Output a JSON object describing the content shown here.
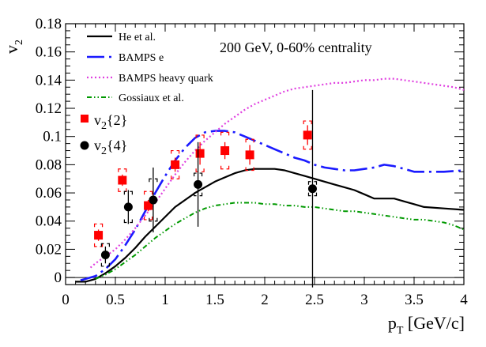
{
  "chart_data": {
    "type": "line",
    "annotation": "200 GeV, 0-60% centrality",
    "xlabel": {
      "main": "p",
      "sub": "T",
      "rest": " [GeV/c]"
    },
    "ylabel": {
      "main": "v",
      "sub": "2"
    },
    "xlim": [
      0,
      4
    ],
    "ylim": [
      -0.005,
      0.18
    ],
    "x_ticks": [
      0,
      0.5,
      1,
      1.5,
      2,
      2.5,
      3,
      3.5,
      4
    ],
    "x_tick_labels": [
      "0",
      "0.5",
      "1",
      "1.5",
      "2",
      "2.5",
      "3",
      "3.5",
      "4"
    ],
    "y_ticks": [
      0,
      0.02,
      0.04,
      0.06,
      0.08,
      0.1,
      0.12,
      0.14,
      0.16,
      0.18
    ],
    "y_tick_labels": [
      "0",
      "0.02",
      "0.04",
      "0.06",
      "0.08",
      "0.1",
      "0.12",
      "0.14",
      "0.16",
      "0.18"
    ],
    "curves": [
      {
        "name": "He et al.",
        "color": "#000000",
        "dash": "",
        "width": 2.2,
        "x": [
          0.1,
          0.2,
          0.3,
          0.4,
          0.5,
          0.6,
          0.7,
          0.8,
          0.9,
          1.0,
          1.1,
          1.2,
          1.3,
          1.4,
          1.5,
          1.6,
          1.7,
          1.8,
          1.9,
          2.0,
          2.1,
          2.2,
          2.3,
          2.4,
          2.5,
          2.6,
          2.7,
          2.8,
          2.9,
          3.0,
          3.1,
          3.2,
          3.3,
          3.4,
          3.5,
          3.6,
          3.8,
          4.0
        ],
        "y": [
          -0.003,
          -0.003,
          -0.001,
          0.003,
          0.008,
          0.014,
          0.021,
          0.029,
          0.036,
          0.043,
          0.05,
          0.055,
          0.06,
          0.064,
          0.068,
          0.071,
          0.074,
          0.076,
          0.077,
          0.077,
          0.077,
          0.076,
          0.074,
          0.072,
          0.07,
          0.068,
          0.066,
          0.064,
          0.062,
          0.059,
          0.056,
          0.056,
          0.056,
          0.054,
          0.052,
          0.05,
          0.049,
          0.048
        ]
      },
      {
        "name": "BAMPS e",
        "color": "#1a1aff",
        "dash": "22,6,3,6",
        "width": 2.6,
        "x": [
          0.15,
          0.2,
          0.3,
          0.4,
          0.5,
          0.6,
          0.7,
          0.8,
          0.9,
          1.0,
          1.1,
          1.2,
          1.3,
          1.4,
          1.5,
          1.6,
          1.7,
          1.8,
          1.9,
          2.0,
          2.1,
          2.2,
          2.3,
          2.4,
          2.5,
          2.6,
          2.7,
          2.8,
          2.9,
          3.0,
          3.1,
          3.2,
          3.3,
          3.4,
          3.5,
          3.6,
          3.8,
          4.0
        ],
        "y": [
          -0.002,
          -0.001,
          0.001,
          0.006,
          0.013,
          0.023,
          0.034,
          0.047,
          0.06,
          0.072,
          0.083,
          0.092,
          0.099,
          0.103,
          0.104,
          0.104,
          0.103,
          0.1,
          0.097,
          0.094,
          0.091,
          0.088,
          0.085,
          0.083,
          0.08,
          0.078,
          0.077,
          0.076,
          0.076,
          0.077,
          0.078,
          0.08,
          0.079,
          0.077,
          0.075,
          0.075,
          0.075,
          0.076
        ]
      },
      {
        "name": "BAMPS heavy quark",
        "color": "#e040e0",
        "dash": "2,3",
        "width": 2.2,
        "x": [
          0.25,
          0.3,
          0.4,
          0.5,
          0.6,
          0.7,
          0.8,
          0.9,
          1.0,
          1.1,
          1.2,
          1.3,
          1.4,
          1.5,
          1.6,
          1.7,
          1.8,
          1.9,
          2.0,
          2.1,
          2.2,
          2.3,
          2.4,
          2.5,
          2.6,
          2.7,
          2.8,
          2.9,
          3.0,
          3.1,
          3.2,
          3.3,
          3.4,
          3.5,
          3.6,
          3.7,
          3.8,
          3.9,
          4.0
        ],
        "y": [
          0.007,
          0.01,
          0.015,
          0.02,
          0.027,
          0.035,
          0.044,
          0.053,
          0.063,
          0.073,
          0.082,
          0.09,
          0.097,
          0.103,
          0.109,
          0.114,
          0.119,
          0.123,
          0.126,
          0.129,
          0.132,
          0.134,
          0.135,
          0.136,
          0.137,
          0.138,
          0.138,
          0.139,
          0.14,
          0.14,
          0.141,
          0.141,
          0.14,
          0.139,
          0.138,
          0.137,
          0.136,
          0.135,
          0.133
        ]
      },
      {
        "name": "Gossiaux et al.",
        "color": "#009900",
        "dash": "6,3,1.5,3,1.5,3",
        "width": 2.0,
        "x": [
          0.3,
          0.4,
          0.5,
          0.6,
          0.7,
          0.8,
          0.9,
          1.0,
          1.1,
          1.2,
          1.3,
          1.4,
          1.5,
          1.6,
          1.7,
          1.8,
          1.9,
          2.0,
          2.1,
          2.2,
          2.3,
          2.4,
          2.5,
          2.6,
          2.7,
          2.8,
          2.9,
          3.0,
          3.1,
          3.2,
          3.3,
          3.4,
          3.5,
          3.6,
          3.7,
          3.8,
          3.9,
          4.0
        ],
        "y": [
          -0.001,
          0.002,
          0.006,
          0.011,
          0.016,
          0.022,
          0.028,
          0.033,
          0.038,
          0.042,
          0.046,
          0.049,
          0.051,
          0.052,
          0.053,
          0.053,
          0.053,
          0.052,
          0.052,
          0.051,
          0.051,
          0.05,
          0.05,
          0.049,
          0.048,
          0.047,
          0.047,
          0.046,
          0.045,
          0.044,
          0.043,
          0.042,
          0.041,
          0.041,
          0.04,
          0.039,
          0.037,
          0.034
        ]
      }
    ],
    "markers": [
      {
        "name": "v2{2}",
        "label_main": "v",
        "label_sub": "2",
        "label_rest": "{2}",
        "shape": "square",
        "color": "#ff0000",
        "x": [
          0.33,
          0.57,
          0.83,
          1.1,
          1.35,
          1.6,
          1.85,
          2.43
        ],
        "y": [
          0.03,
          0.069,
          0.051,
          0.08,
          0.088,
          0.09,
          0.087,
          0.101
        ],
        "stat_err": [
          0.004,
          0.004,
          0.004,
          0.005,
          0.008,
          0.006,
          0.007,
          0.007
        ],
        "sys_err": [
          0.008,
          0.008,
          0.01,
          0.01,
          0.013,
          0.013,
          0.011,
          0.01
        ]
      },
      {
        "name": "v2{4}",
        "label_main": "v",
        "label_sub": "2",
        "label_rest": "{4}",
        "shape": "circle",
        "color": "#000000",
        "x": [
          0.4,
          0.63,
          0.88,
          1.33,
          2.48
        ],
        "y": [
          0.016,
          0.05,
          0.055,
          0.066,
          0.063
        ],
        "stat_err": [
          0.006,
          0.012,
          0.023,
          0.03,
          0.07
        ],
        "sys_err": [
          0.008,
          0.011,
          0.015,
          0.008,
          0.005
        ]
      }
    ]
  }
}
